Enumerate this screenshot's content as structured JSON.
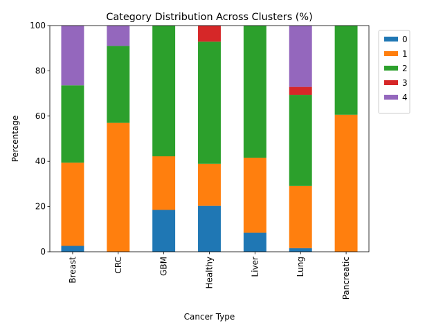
{
  "chart_data": {
    "type": "bar",
    "stacked": true,
    "title": "Category Distribution Across Clusters (%)",
    "xlabel": "Cancer Type",
    "ylabel": "Percentage",
    "ylim": [
      0,
      100
    ],
    "yticks": [
      0,
      20,
      40,
      60,
      80,
      100
    ],
    "grid": false,
    "legend_position": "outside-top-right",
    "categories": [
      "Breast",
      "CRC",
      "GBM",
      "Healthy",
      "Liver",
      "Lung",
      "Pancreatic"
    ],
    "series": [
      {
        "name": "0",
        "color": "#1f77b4",
        "values": [
          2.6,
          0.0,
          18.5,
          20.3,
          8.4,
          1.6,
          0.0
        ]
      },
      {
        "name": "1",
        "color": "#ff7f0e",
        "values": [
          36.8,
          57.0,
          23.7,
          18.6,
          33.2,
          27.5,
          60.6
        ]
      },
      {
        "name": "2",
        "color": "#2ca02c",
        "values": [
          34.2,
          34.0,
          57.8,
          54.0,
          58.4,
          40.3,
          39.4
        ]
      },
      {
        "name": "3",
        "color": "#d62728",
        "values": [
          0.0,
          0.0,
          0.0,
          7.1,
          0.0,
          3.5,
          0.0
        ]
      },
      {
        "name": "4",
        "color": "#9467bd",
        "values": [
          26.4,
          9.0,
          0.0,
          0.0,
          0.0,
          27.1,
          0.0
        ]
      }
    ]
  }
}
